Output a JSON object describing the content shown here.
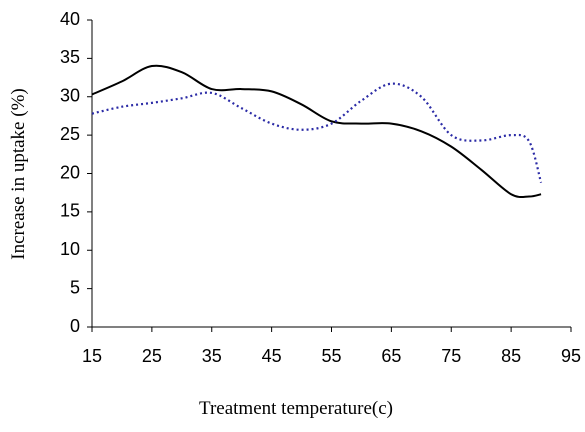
{
  "chart_data": {
    "type": "line",
    "xlabel": "Treatment temperature(c)",
    "ylabel": "Increase in uptake (%)",
    "x": [
      15,
      20,
      25,
      30,
      35,
      40,
      45,
      50,
      55,
      60,
      65,
      70,
      75,
      80,
      85,
      88,
      90
    ],
    "series": [
      {
        "color": "#000000",
        "line_style": "solid",
        "values": [
          30.3,
          32,
          34,
          33.2,
          31,
          31,
          30.7,
          29,
          26.8,
          26.5,
          26.5,
          25.5,
          23.5,
          20.5,
          17.3,
          17,
          17.3
        ]
      },
      {
        "color": "#2b2ba6",
        "line_style": "dotted",
        "values": [
          27.8,
          28.7,
          29.2,
          29.8,
          30.5,
          28.5,
          26.5,
          25.7,
          26.5,
          29.5,
          31.7,
          30,
          25,
          24.3,
          25,
          24.2,
          18.8
        ]
      }
    ],
    "xlim": [
      15,
      95
    ],
    "xticks": [
      15,
      25,
      35,
      45,
      55,
      65,
      75,
      85,
      95
    ],
    "ylim": [
      0,
      40
    ],
    "yticks": [
      0,
      5,
      10,
      15,
      20,
      25,
      30,
      35,
      40
    ],
    "grid": false
  }
}
